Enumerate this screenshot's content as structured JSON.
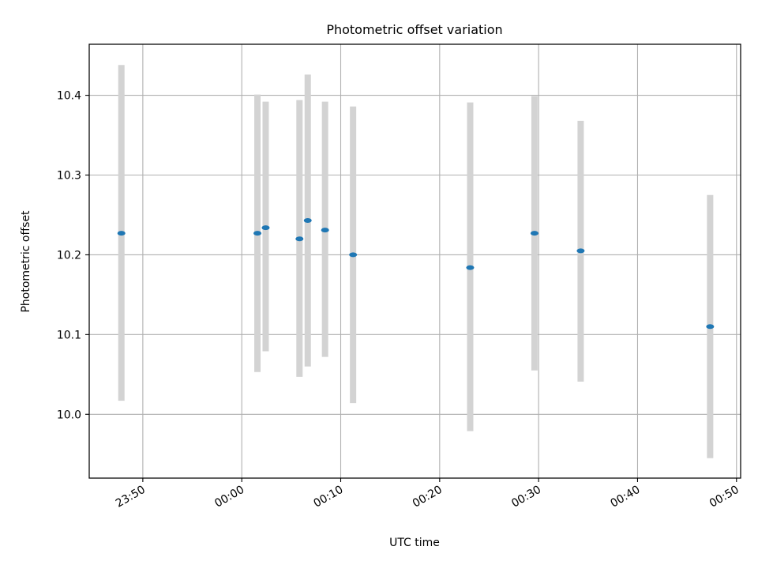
{
  "chart_data": {
    "type": "scatter",
    "title": "Photometric offset variation",
    "xlabel": "UTC time",
    "ylabel": "Photometric offset",
    "xlim": [
      "23:44:35",
      "00:50:25"
    ],
    "ylim": [
      9.92,
      10.464
    ],
    "x_ticks": [
      "23:50",
      "00:00",
      "00:10",
      "00:20",
      "00:30",
      "00:40",
      "00:50"
    ],
    "y_ticks": [
      "10.0",
      "10.1",
      "10.2",
      "10.3",
      "10.4"
    ],
    "grid": true,
    "colors": {
      "point": "#1f77b4",
      "errorbar": "#d3d3d3",
      "grid": "#b0b0b0"
    },
    "points": [
      {
        "x": "23:47:50",
        "y": 10.227,
        "ylow": 10.017,
        "yhigh": 10.438
      },
      {
        "x": "00:01:35",
        "y": 10.227,
        "ylow": 10.053,
        "yhigh": 10.401
      },
      {
        "x": "00:02:25",
        "y": 10.234,
        "ylow": 10.079,
        "yhigh": 10.392
      },
      {
        "x": "00:05:50",
        "y": 10.22,
        "ylow": 10.047,
        "yhigh": 10.394
      },
      {
        "x": "00:06:40",
        "y": 10.243,
        "ylow": 10.06,
        "yhigh": 10.426
      },
      {
        "x": "00:08:25",
        "y": 10.231,
        "ylow": 10.072,
        "yhigh": 10.392
      },
      {
        "x": "00:11:15",
        "y": 10.2,
        "ylow": 10.014,
        "yhigh": 10.386
      },
      {
        "x": "00:23:05",
        "y": 10.184,
        "ylow": 9.979,
        "yhigh": 10.391
      },
      {
        "x": "00:29:35",
        "y": 10.227,
        "ylow": 10.055,
        "yhigh": 10.399
      },
      {
        "x": "00:34:15",
        "y": 10.205,
        "ylow": 10.041,
        "yhigh": 10.368
      },
      {
        "x": "00:47:20",
        "y": 10.11,
        "ylow": 9.945,
        "yhigh": 10.275
      }
    ]
  }
}
